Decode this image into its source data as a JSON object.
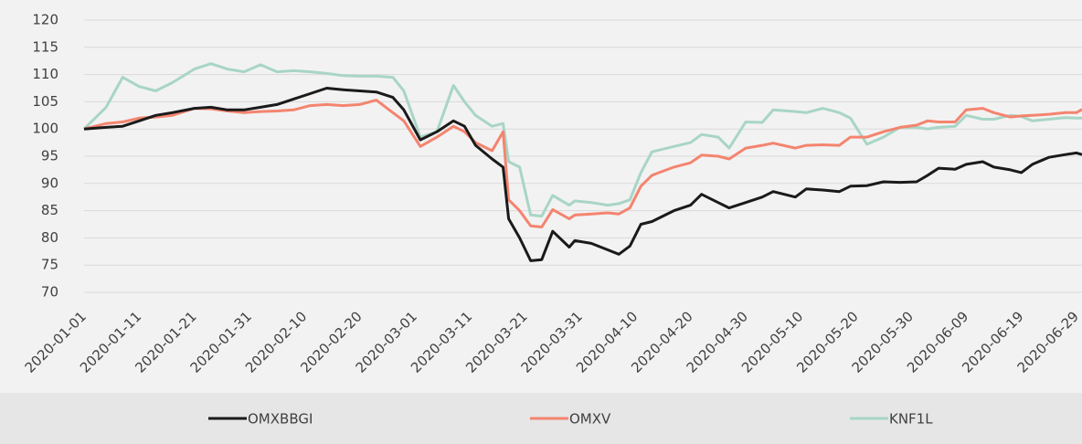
{
  "chart_data": {
    "type": "line",
    "x": [
      "2020-01-01",
      "2020-01-05",
      "2020-01-08",
      "2020-01-11",
      "2020-01-14",
      "2020-01-17",
      "2020-01-21",
      "2020-01-24",
      "2020-01-27",
      "2020-01-30",
      "2020-02-02",
      "2020-02-05",
      "2020-02-08",
      "2020-02-11",
      "2020-02-14",
      "2020-02-17",
      "2020-02-20",
      "2020-02-23",
      "2020-02-26",
      "2020-02-28",
      "2020-03-02",
      "2020-03-05",
      "2020-03-08",
      "2020-03-10",
      "2020-03-12",
      "2020-03-15",
      "2020-03-17",
      "2020-03-18",
      "2020-03-20",
      "2020-03-22",
      "2020-03-24",
      "2020-03-26",
      "2020-03-29",
      "2020-03-30",
      "2020-04-02",
      "2020-04-05",
      "2020-04-07",
      "2020-04-09",
      "2020-04-11",
      "2020-04-13",
      "2020-04-17",
      "2020-04-20",
      "2020-04-22",
      "2020-04-25",
      "2020-04-27",
      "2020-04-30",
      "2020-05-03",
      "2020-05-05",
      "2020-05-09",
      "2020-05-11",
      "2020-05-14",
      "2020-05-17",
      "2020-05-19",
      "2020-05-22",
      "2020-05-25",
      "2020-05-28",
      "2020-05-31",
      "2020-06-02",
      "2020-06-04",
      "2020-06-07",
      "2020-06-09",
      "2020-06-12",
      "2020-06-14",
      "2020-06-17",
      "2020-06-19",
      "2020-06-21",
      "2020-06-24",
      "2020-06-27",
      "2020-06-29",
      "2020-06-30"
    ],
    "series": [
      {
        "name": "OMXBBGI",
        "color": "#1a1a1a",
        "values": [
          100,
          100.3,
          100.5,
          101.5,
          102.5,
          103,
          103.8,
          104,
          103.5,
          103.5,
          104,
          104.5,
          105.5,
          106.5,
          107.5,
          107.2,
          107,
          106.8,
          105.8,
          103.5,
          98,
          99.5,
          101.5,
          100.5,
          97,
          94.5,
          93,
          83.5,
          80,
          75.8,
          76,
          81.2,
          78.3,
          79.5,
          79,
          77.8,
          77,
          78.5,
          82.5,
          83,
          85,
          86,
          88,
          86.5,
          85.5,
          86.5,
          87.5,
          88.5,
          87.5,
          89,
          88.8,
          88.5,
          89.5,
          89.6,
          90.3,
          90.2,
          90.3,
          91.5,
          92.8,
          92.6,
          93.5,
          94,
          93,
          92.5,
          92,
          93.5,
          94.8,
          95.3,
          95.6,
          95.3
        ]
      },
      {
        "name": "OMXV",
        "color": "#f4846f",
        "values": [
          100,
          101,
          101.3,
          102,
          102.2,
          102.5,
          103.8,
          103.7,
          103.3,
          103,
          103.2,
          103.3,
          103.5,
          104.3,
          104.5,
          104.3,
          104.5,
          105.3,
          103,
          101.5,
          96.8,
          98.5,
          100.5,
          99.5,
          97.5,
          96,
          99.5,
          87,
          85,
          82.2,
          82,
          85.2,
          83.5,
          84.2,
          84.4,
          84.6,
          84.4,
          85.5,
          89.5,
          91.5,
          93,
          93.8,
          95.2,
          95,
          94.5,
          96.5,
          97,
          97.4,
          96.5,
          97,
          97.1,
          97,
          98.5,
          98.5,
          99.5,
          100.3,
          100.7,
          101.5,
          101.3,
          101.3,
          103.5,
          103.8,
          103,
          102.2,
          102.4,
          102.5,
          102.7,
          103,
          103,
          103.6
        ]
      },
      {
        "name": "KNF1L",
        "color": "#a8d5c6",
        "values": [
          100,
          104,
          109.5,
          107.8,
          107,
          108.5,
          111,
          112,
          111,
          110.5,
          111.8,
          110.5,
          110.7,
          110.5,
          110.2,
          109.8,
          109.7,
          109.7,
          109.5,
          107,
          98.5,
          99.5,
          108,
          105,
          102.5,
          100.5,
          101,
          94,
          93,
          84.2,
          84,
          87.8,
          86,
          86.8,
          86.5,
          86,
          86.3,
          87,
          92,
          95.8,
          96.8,
          97.5,
          99,
          98.5,
          96.5,
          101.3,
          101.2,
          103.5,
          103.2,
          103,
          103.8,
          103,
          102,
          97.2,
          98.5,
          100.3,
          100.3,
          100,
          100.3,
          100.5,
          102.5,
          101.8,
          101.8,
          102.5,
          102.3,
          101.5,
          101.8,
          102.1,
          102,
          102
        ]
      }
    ],
    "xlim": [
      "2020-01-01",
      "2020-06-30"
    ],
    "xticks": [
      "2020-01-01",
      "2020-01-11",
      "2020-01-21",
      "2020-01-31",
      "2020-02-10",
      "2020-02-20",
      "2020-03-01",
      "2020-03-11",
      "2020-03-21",
      "2020-03-31",
      "2020-04-10",
      "2020-04-20",
      "2020-04-30",
      "2020-05-10",
      "2020-05-20",
      "2020-05-30",
      "2020-06-09",
      "2020-06-19",
      "2020-06-29"
    ],
    "ylim": [
      70,
      120
    ],
    "yticks": [
      70,
      75,
      80,
      85,
      90,
      95,
      100,
      105,
      110,
      115,
      120
    ],
    "grid": true,
    "legend": "bottom"
  }
}
